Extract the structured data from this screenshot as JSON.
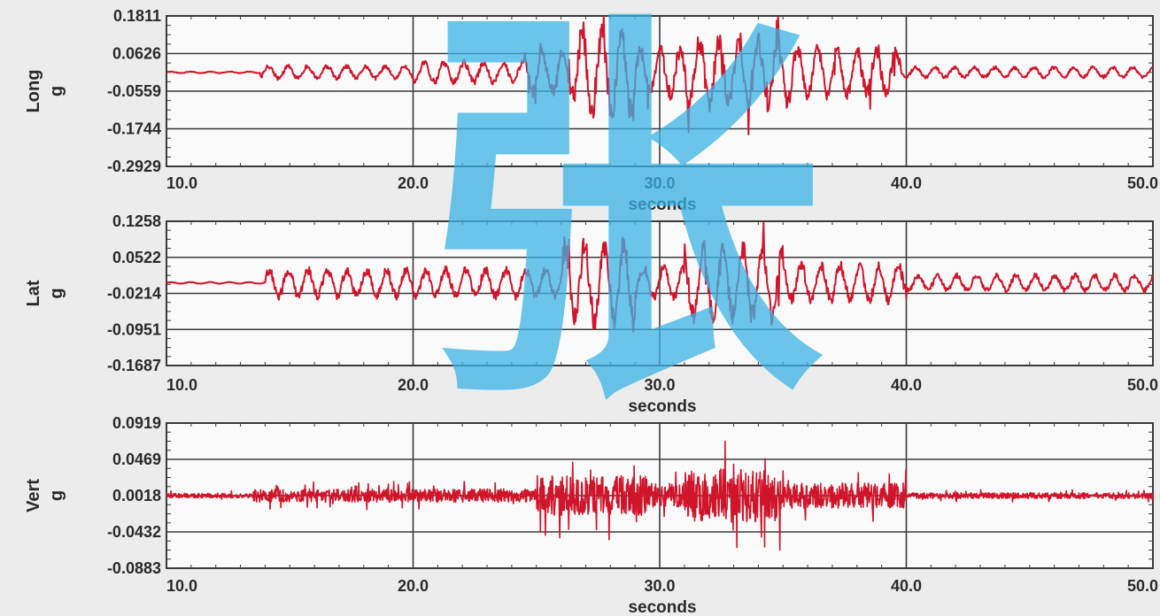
{
  "colors": {
    "background": "#ececec",
    "plot_background": "#fafafa",
    "grid": "#3a3a3a",
    "series": "#d0142a",
    "watermark": "#3bb3e6"
  },
  "chart_data": [
    {
      "type": "line",
      "series": [
        {
          "values_note_hidden": ""
        }
      ],
      "ylabel": [
        "Long",
        "g"
      ],
      "xlabel": "seconds",
      "xlim": [
        10.0,
        50.0
      ],
      "xticks": [
        "10.0",
        "20.0",
        "30.0",
        "40.0",
        "50.0"
      ],
      "ylim": [
        -0.2929,
        0.1811
      ],
      "yticks": [
        "0.1811",
        "0.0626",
        "-0.0559",
        "-0.1744",
        "-0.2929"
      ],
      "baseline": 0.0034,
      "grid": true,
      "segments": [
        {
          "x": [
            10.0,
            13.8
          ],
          "amplitude": 0.003
        },
        {
          "x": [
            13.8,
            20.0
          ],
          "amplitude": 0.025
        },
        {
          "x": [
            20.0,
            24.5
          ],
          "amplitude": 0.04
        },
        {
          "x": [
            24.5,
            26.5
          ],
          "amplitude": 0.08
        },
        {
          "x": [
            26.5,
            29.0
          ],
          "amplitude": 0.16
        },
        {
          "x": [
            29.0,
            31.0
          ],
          "amplitude": 0.09
        },
        {
          "x": [
            31.0,
            35.5
          ],
          "amplitude": 0.13
        },
        {
          "x": [
            35.5,
            39.8
          ],
          "amplitude": 0.09
        },
        {
          "x": [
            39.8,
            50.0
          ],
          "amplitude": 0.02
        }
      ]
    },
    {
      "type": "line",
      "ylabel": [
        "Lat",
        "g"
      ],
      "xlabel": "seconds",
      "xlim": [
        10.0,
        50.0
      ],
      "xticks": [
        "10.0",
        "20.0",
        "30.0",
        "40.0",
        "50.0"
      ],
      "ylim": [
        -0.1687,
        0.1258
      ],
      "yticks": [
        "0.1258",
        "0.0522",
        "-0.0214",
        "-0.0951",
        "-0.1687"
      ],
      "baseline": 0.0,
      "grid": true,
      "segments": [
        {
          "x": [
            10.0,
            14.0
          ],
          "amplitude": 0.002
        },
        {
          "x": [
            14.0,
            26.0
          ],
          "amplitude": 0.035
        },
        {
          "x": [
            26.0,
            29.0
          ],
          "amplitude": 0.1
        },
        {
          "x": [
            29.0,
            31.0
          ],
          "amplitude": 0.04
        },
        {
          "x": [
            31.0,
            35.0
          ],
          "amplitude": 0.09
        },
        {
          "x": [
            35.0,
            40.0
          ],
          "amplitude": 0.045
        },
        {
          "x": [
            40.0,
            50.0
          ],
          "amplitude": 0.02
        }
      ]
    },
    {
      "type": "line",
      "ylabel": [
        "Vert",
        "g"
      ],
      "xlabel": "seconds",
      "xlim": [
        10.0,
        50.0
      ],
      "xticks": [
        "10.0",
        "20.0",
        "30.0",
        "40.0",
        "50.0"
      ],
      "ylim": [
        -0.0883,
        0.0919
      ],
      "yticks": [
        "0.0919",
        "0.0469",
        "0.0018",
        "-0.0432",
        "-0.0883"
      ],
      "baseline": 0.0018,
      "grid": true,
      "segments": [
        {
          "x": [
            10.0,
            13.5
          ],
          "amplitude": 0.006
        },
        {
          "x": [
            13.5,
            25.0
          ],
          "amplitude": 0.018
        },
        {
          "x": [
            25.0,
            29.5
          ],
          "amplitude": 0.055
        },
        {
          "x": [
            29.5,
            31.0
          ],
          "amplitude": 0.035
        },
        {
          "x": [
            31.0,
            35.0
          ],
          "amplitude": 0.075
        },
        {
          "x": [
            35.0,
            40.0
          ],
          "amplitude": 0.035
        },
        {
          "x": [
            40.0,
            50.0
          ],
          "amplitude": 0.008
        }
      ]
    }
  ]
}
